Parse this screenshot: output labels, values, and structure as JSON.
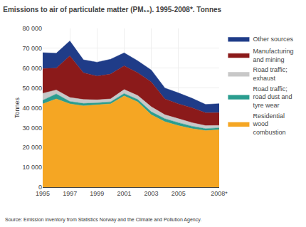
{
  "chart_data": {
    "type": "area",
    "title": "Emissions to air of particulate matter (PM₁₀). 1995-2008*. Tonnes",
    "ylabel": "Tonnes",
    "source": "Source: Emission inventory from Statistics Norway and the Climate and Pollution Agency.",
    "x": [
      1995,
      1996,
      1997,
      1998,
      1999,
      2000,
      2001,
      2002,
      2003,
      2004,
      2005,
      2006,
      2007,
      2008
    ],
    "series": [
      {
        "name": "Residential\nwood\ncombustion",
        "color": "#F5A623",
        "values": [
          42000,
          44500,
          42000,
          41000,
          41500,
          42000,
          46000,
          43000,
          36500,
          33000,
          31000,
          29500,
          28500,
          29000
        ]
      },
      {
        "name": "Road traffic;\nroad dust and\ntyre wear",
        "color": "#2A9D8F",
        "values": [
          1800,
          2500,
          1200,
          1200,
          1000,
          1000,
          1200,
          1200,
          1500,
          1500,
          1500,
          1200,
          1000,
          900
        ]
      },
      {
        "name": "Road traffic;\nexhaust",
        "color": "#C8C8C8",
        "values": [
          3500,
          2000,
          2000,
          2000,
          1500,
          1500,
          2000,
          2000,
          2500,
          2000,
          2000,
          1800,
          1500,
          1200
        ]
      },
      {
        "name": "Manufacturing\nand mining",
        "color": "#8B1A1A",
        "values": [
          12500,
          11000,
          21000,
          13500,
          12000,
          12500,
          12000,
          11500,
          12500,
          8000,
          7500,
          7500,
          6500,
          6500
        ]
      },
      {
        "name": "Other sources",
        "color": "#1F3C88",
        "values": [
          8000,
          7500,
          7500,
          6500,
          7000,
          7500,
          6500,
          6000,
          6000,
          5500,
          5500,
          4800,
          4200,
          4500
        ]
      }
    ],
    "xlim": [
      1995,
      2008
    ],
    "xticks": [
      1995,
      1997,
      1999,
      2001,
      2003,
      2005,
      {
        "value": 2008,
        "label": "2008*"
      }
    ],
    "ylim": [
      0,
      80000
    ],
    "yticks": [
      0,
      {
        "value": 10000,
        "label": "10 000"
      },
      {
        "value": 20000,
        "label": "20 000"
      },
      {
        "value": 30000,
        "label": "30 000"
      },
      {
        "value": 40000,
        "label": "40 000"
      },
      {
        "value": 50000,
        "label": "50 000"
      },
      {
        "value": 60000,
        "label": "60 000"
      },
      {
        "value": 70000,
        "label": "70 000"
      },
      {
        "value": 80000,
        "label": "80 000"
      }
    ],
    "grid": true,
    "stacked": true,
    "legend": "right"
  }
}
